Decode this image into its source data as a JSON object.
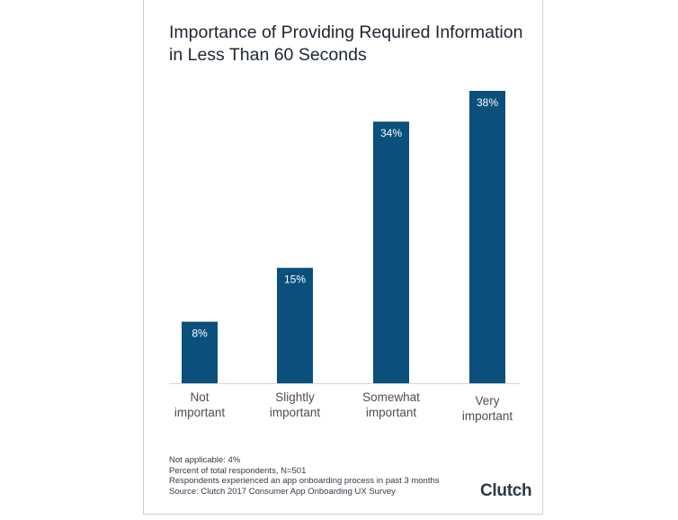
{
  "chart_data": {
    "type": "bar",
    "title_lines": [
      "Importance of Providing Required Information",
      "in Less Than 60 Seconds"
    ],
    "categories": [
      [
        "Not",
        "important"
      ],
      [
        "Slightly",
        "important"
      ],
      [
        "Somewhat",
        "important"
      ],
      [
        "Very",
        "important"
      ]
    ],
    "values": [
      8,
      15,
      34,
      38
    ],
    "value_labels": [
      "8%",
      "15%",
      "34%",
      "38%"
    ],
    "ylim": [
      0,
      38
    ],
    "grid": false,
    "bar_color": "#0b4f7c",
    "label_color": "#ffffff",
    "axis_text_color": "#4a4f57"
  },
  "footnotes": [
    "Not applicable: 4%",
    "Percent of total respondents, N=501",
    "Respondents experienced an app onboarding process in past 3 months",
    "Source: Clutch 2017 Consumer App Onboarding UX Survey"
  ],
  "logo_text": "Clutch"
}
